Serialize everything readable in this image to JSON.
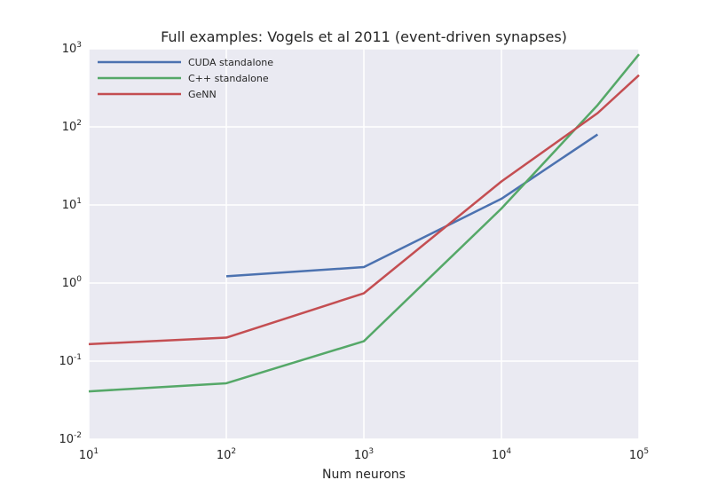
{
  "chart_data": {
    "type": "line",
    "title": "Full examples: Vogels et al 2011 (event-driven synapses)",
    "xlabel": "Num neurons",
    "ylabel": "",
    "x_scale": "log",
    "y_scale": "log",
    "xlim": [
      10,
      100000
    ],
    "ylim": [
      0.01,
      1000
    ],
    "x_ticks": [
      {
        "base": "10",
        "exp": "1",
        "value": 10
      },
      {
        "base": "10",
        "exp": "2",
        "value": 100
      },
      {
        "base": "10",
        "exp": "3",
        "value": 1000
      },
      {
        "base": "10",
        "exp": "4",
        "value": 10000
      },
      {
        "base": "10",
        "exp": "5",
        "value": 100000
      }
    ],
    "y_ticks": [
      {
        "base": "10",
        "exp": "-2",
        "value": 0.01
      },
      {
        "base": "10",
        "exp": "-1",
        "value": 0.1
      },
      {
        "base": "10",
        "exp": "0",
        "value": 1
      },
      {
        "base": "10",
        "exp": "1",
        "value": 10
      },
      {
        "base": "10",
        "exp": "2",
        "value": 100
      },
      {
        "base": "10",
        "exp": "3",
        "value": 1000
      }
    ],
    "grid": true,
    "legend_position": "top-left",
    "background": "#EAEAF2",
    "series": [
      {
        "name": "CUDA standalone",
        "color": "#4C72B0",
        "x": [
          100,
          1000,
          10000,
          50000
        ],
        "y": [
          1.22,
          1.6,
          12,
          80
        ]
      },
      {
        "name": "C++ standalone",
        "color": "#55A868",
        "x": [
          10,
          100,
          1000,
          10000,
          50000,
          100000
        ],
        "y": [
          0.041,
          0.052,
          0.18,
          9,
          190,
          850
        ]
      },
      {
        "name": "GeNN",
        "color": "#C44E52",
        "x": [
          10,
          100,
          1000,
          10000,
          50000,
          100000
        ],
        "y": [
          0.165,
          0.2,
          0.74,
          20,
          150,
          460
        ]
      }
    ]
  }
}
